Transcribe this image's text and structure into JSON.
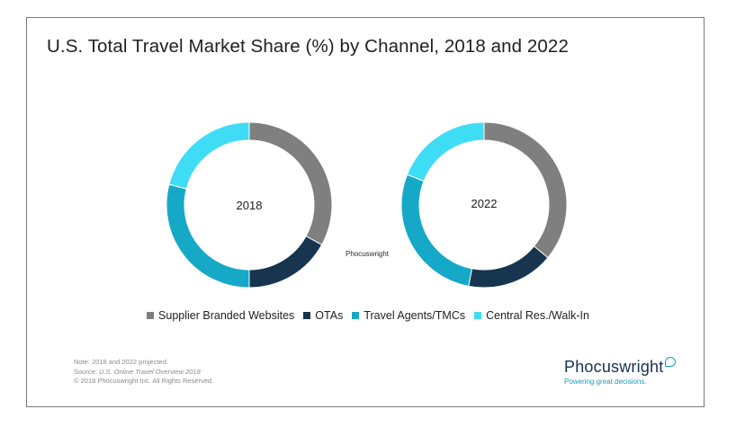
{
  "title": "U.S. Total Travel Market Share (%) by Channel, 2018 and 2022",
  "watermark": "Phocuswright",
  "legend": [
    {
      "label": "Supplier Branded Websites",
      "color": "#7f7f7f"
    },
    {
      "label": "OTAs",
      "color": "#17354f"
    },
    {
      "label": "Travel Agents/TMCs",
      "color": "#16a8c7"
    },
    {
      "label": "Central Res./Walk-In",
      "color": "#3fdcf6"
    }
  ],
  "notes": {
    "line1": "Note: 2018 and 2022 projected.",
    "source_prefix": "Source: ",
    "source_title": "U.S. Online Travel Overview 2018",
    "line3": "© 2018 Phocuswright Inc. All Rights Reserved."
  },
  "brand": {
    "name": "Phocuswright",
    "tagline": "Powering great decisions."
  },
  "chart_data": [
    {
      "type": "pie",
      "title": "2018",
      "categories": [
        "Supplier Branded Websites",
        "OTAs",
        "Travel Agents/TMCs",
        "Central Res./Walk-In"
      ],
      "values": [
        33,
        17,
        29,
        21
      ],
      "colors": [
        "#7f7f7f",
        "#17354f",
        "#16a8c7",
        "#3fdcf6"
      ]
    },
    {
      "type": "pie",
      "title": "2022",
      "categories": [
        "Supplier Branded Websites",
        "OTAs",
        "Travel Agents/TMCs",
        "Central Res./Walk-In"
      ],
      "values": [
        36,
        17,
        28,
        19
      ],
      "colors": [
        "#7f7f7f",
        "#17354f",
        "#16a8c7",
        "#3fdcf6"
      ]
    }
  ]
}
